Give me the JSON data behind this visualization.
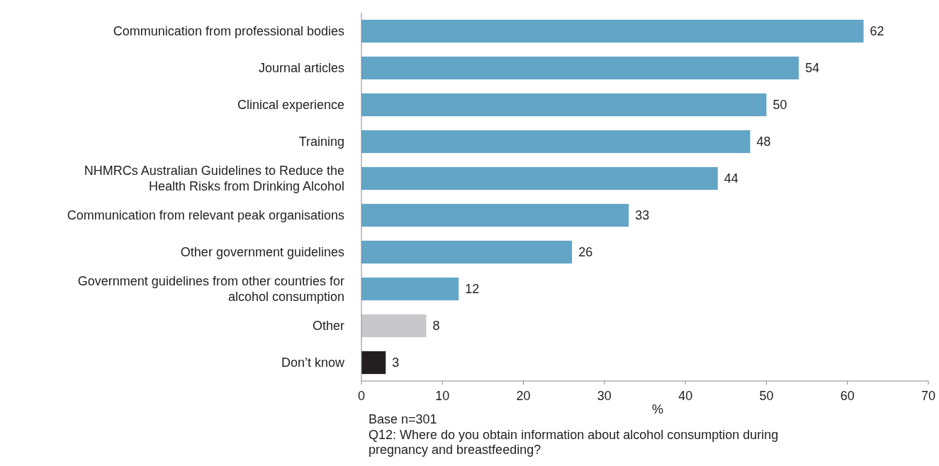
{
  "chart_data": {
    "type": "bar",
    "orientation": "horizontal",
    "categories": [
      "Communication from professional bodies",
      "Journal articles",
      "Clinical experience",
      "Training",
      "NHMRCs Australian Guidelines to Reduce the\nHealth Risks from Drinking Alcohol",
      "Communication from relevant peak organisations",
      "Other government guidelines",
      "Government guidelines from other countries for\nalcohol consumption",
      "Other",
      "Don’t know"
    ],
    "values": [
      62,
      54,
      50,
      48,
      44,
      33,
      26,
      12,
      8,
      3
    ],
    "colors": [
      "#62a5c6",
      "#62a5c6",
      "#62a5c6",
      "#62a5c6",
      "#62a5c6",
      "#62a5c6",
      "#62a5c6",
      "#62a5c6",
      "#c8c8ca",
      "#231f20"
    ],
    "xlim": [
      0,
      70
    ],
    "xticks": [
      0,
      10,
      20,
      30,
      40,
      50,
      60,
      70
    ],
    "xlabel": "%",
    "data_labels": true,
    "annotations": [
      "Base n=301",
      "Q12: Where do you obtain information about alcohol consumption during\npregnancy and breastfeeding?"
    ]
  }
}
